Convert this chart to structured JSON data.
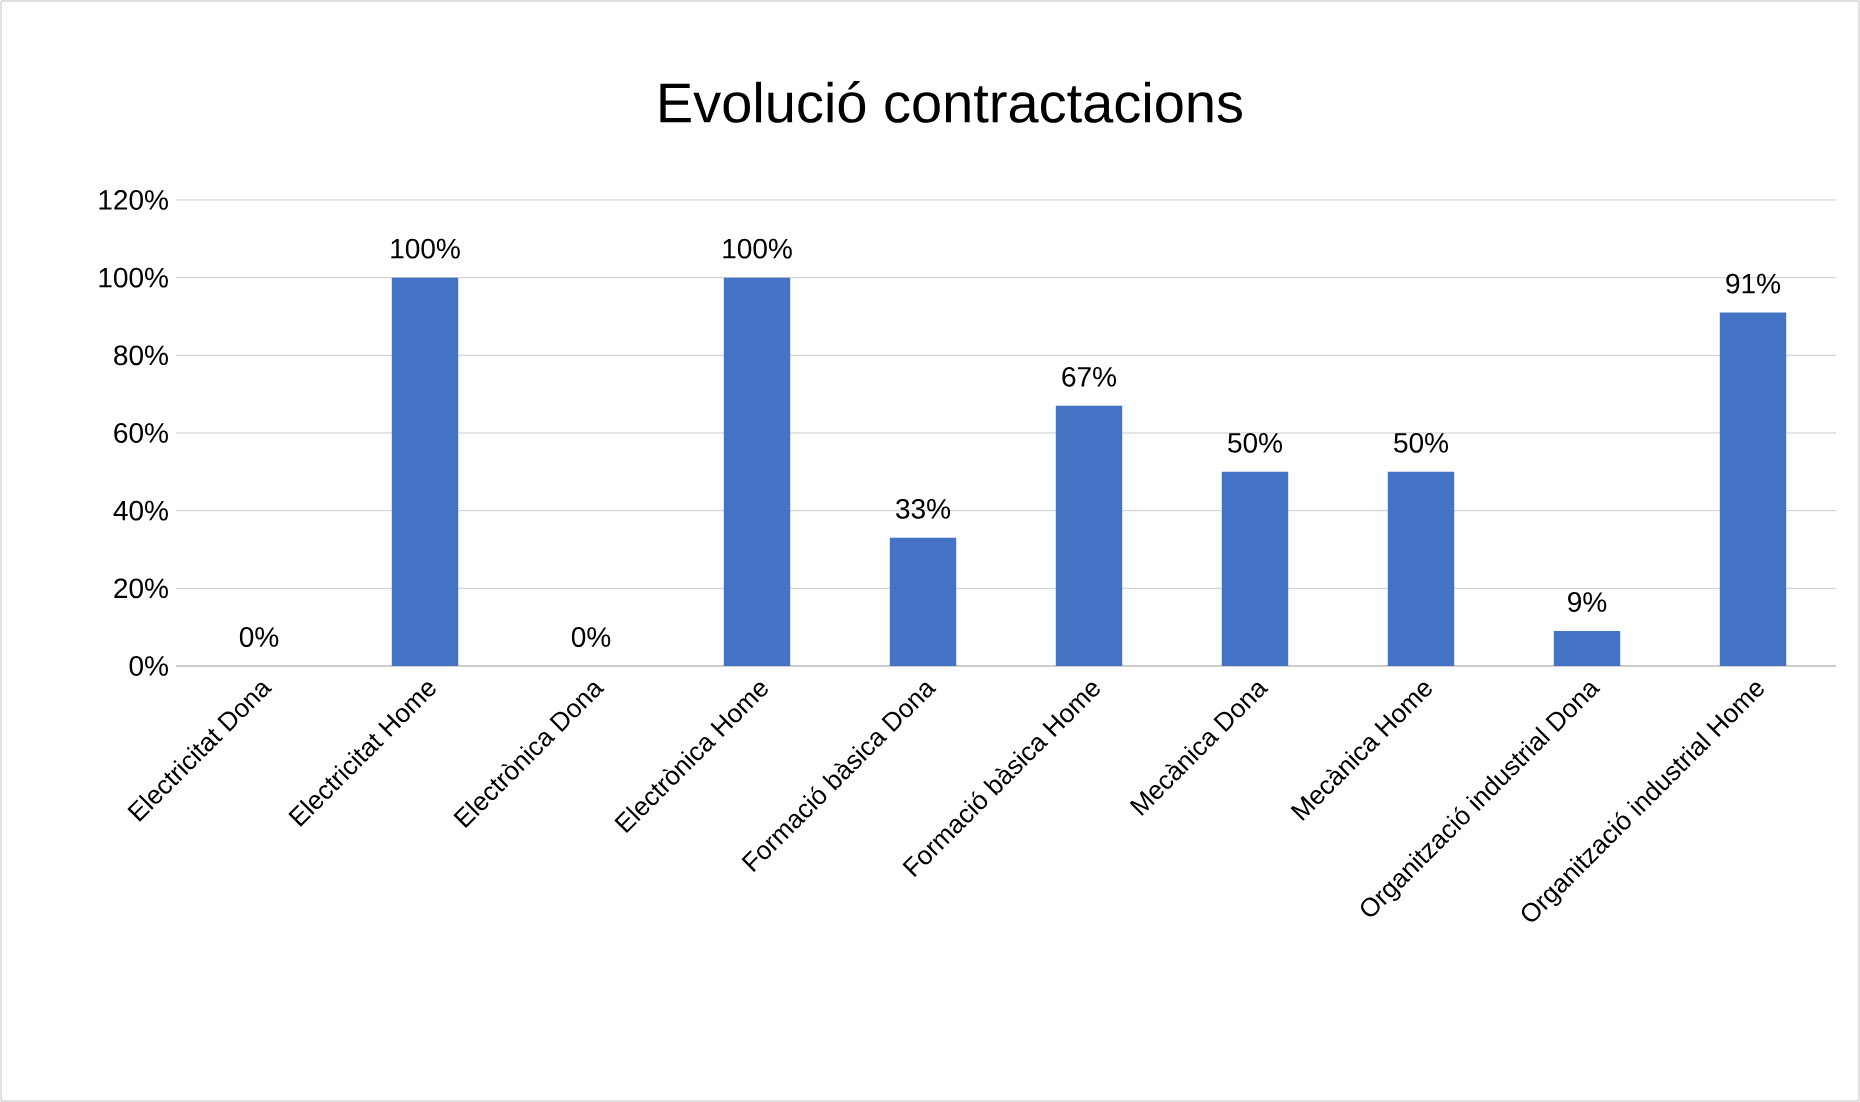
{
  "chart_data": {
    "type": "bar",
    "title": "Evolució contractacions",
    "categories": [
      "Electricitat Dona",
      "Electricitat Home",
      "Electrònica Dona",
      "Electrònica Home",
      "Formació bàsica Dona",
      "Formació bàsica Home",
      "Mecànica Dona",
      "Mecànica Home",
      "Organització industrial Dona",
      "Organització industrial Home"
    ],
    "values": [
      0,
      100,
      0,
      100,
      33,
      67,
      50,
      50,
      9,
      91
    ],
    "value_labels": [
      "0%",
      "100%",
      "0%",
      "100%",
      "33%",
      "67%",
      "50%",
      "50%",
      "9%",
      "91%"
    ],
    "color": "#4472c4",
    "ylim": [
      0,
      120
    ],
    "yticks": [
      {
        "value": 0,
        "label": "0%"
      },
      {
        "value": 20,
        "label": "20%"
      },
      {
        "value": 40,
        "label": "40%"
      },
      {
        "value": 60,
        "label": "60%"
      },
      {
        "value": 80,
        "label": "80%"
      },
      {
        "value": 100,
        "label": "100%"
      },
      {
        "value": 120,
        "label": "120%"
      }
    ],
    "grid": "y"
  }
}
